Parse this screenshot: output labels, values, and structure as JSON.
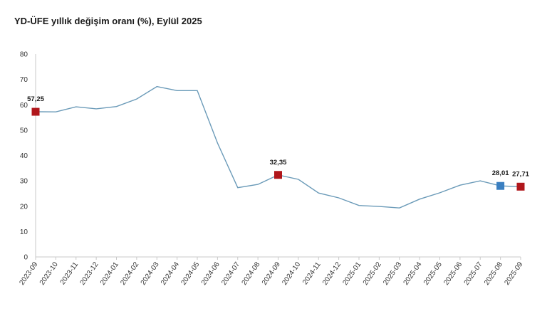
{
  "chart_data": {
    "type": "line",
    "title": "YD-ÜFE yıllık değişim oranı (%), Eylül 2025",
    "xlabel": "",
    "ylabel": "",
    "ylim": [
      0,
      80
    ],
    "yticks": [
      0,
      10,
      20,
      30,
      40,
      50,
      60,
      70,
      80
    ],
    "grid": false,
    "legend": "none",
    "categories": [
      "2023-09",
      "2023-10",
      "2023-11",
      "2023-12",
      "2024-01",
      "2024-02",
      "2024-03",
      "2024-04",
      "2024-05",
      "2024-06",
      "2024-07",
      "2024-08",
      "2024-09",
      "2024-10",
      "2024-11",
      "2024-12",
      "2025-01",
      "2025-02",
      "2025-03",
      "2025-04",
      "2025-05",
      "2025-06",
      "2025-07",
      "2025-08",
      "2025-09"
    ],
    "series": [
      {
        "name": "YD-ÜFE",
        "color": "#6a9ab8",
        "values": [
          57.25,
          57.2,
          59.2,
          58.4,
          59.3,
          62.3,
          67.2,
          65.6,
          65.6,
          44.9,
          27.3,
          28.6,
          32.35,
          30.6,
          25.2,
          23.3,
          20.3,
          19.9,
          19.3,
          22.8,
          25.3,
          28.3,
          30.0,
          28.01,
          27.71
        ]
      }
    ],
    "markers": [
      {
        "category": "2023-09",
        "value": 57.25,
        "label": "57,25",
        "color": "#b0161b"
      },
      {
        "category": "2024-09",
        "value": 32.35,
        "label": "32,35",
        "color": "#b0161b"
      },
      {
        "category": "2025-08",
        "value": 28.01,
        "label": "28,01",
        "color": "#3a7fc1"
      },
      {
        "category": "2025-09",
        "value": 27.71,
        "label": "27,71",
        "color": "#b0161b"
      }
    ]
  }
}
